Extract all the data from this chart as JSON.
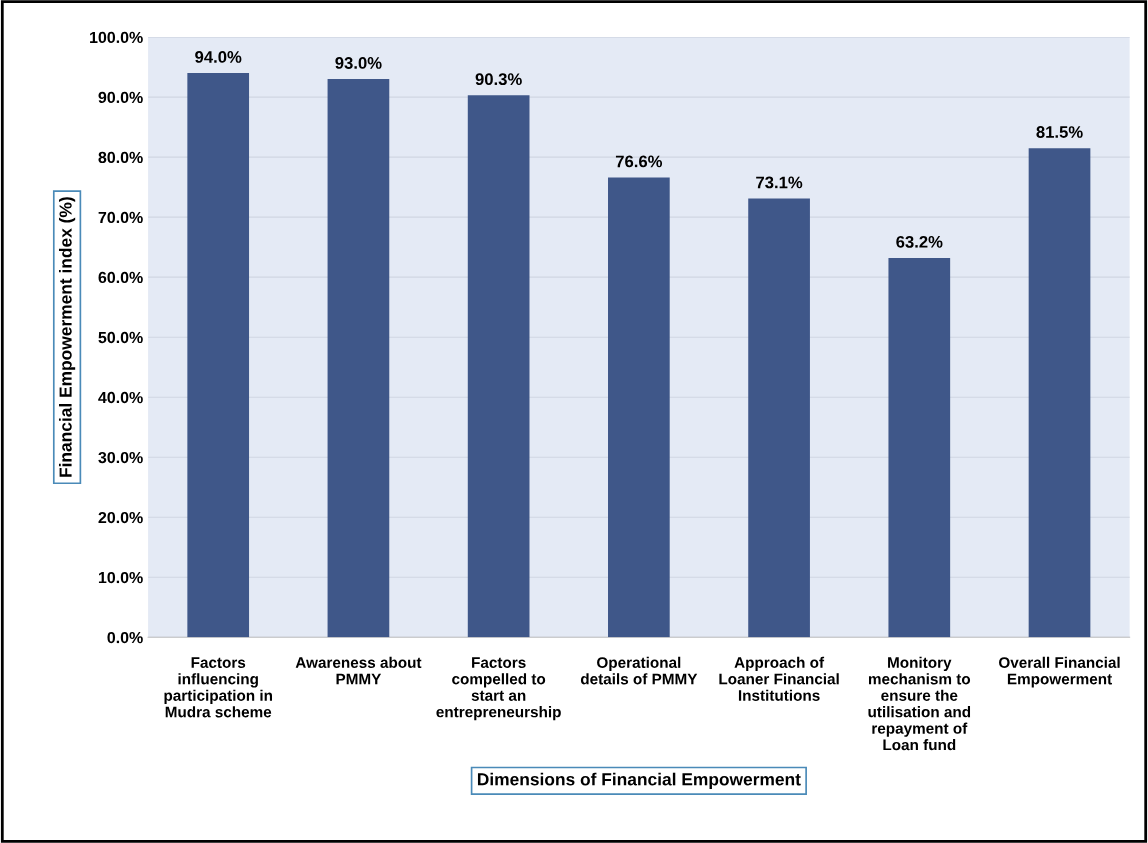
{
  "chart_data": {
    "type": "bar",
    "categories": [
      "Factors\ninfluencing\nparticipation in\nMudra scheme",
      "Awareness about\nPMMY",
      "Factors\ncompelled to\nstart an\nentrepreneurship",
      "Operational\ndetails of PMMY",
      "Approach of\nLoaner Financial\nInstitutions",
      "Monitory\nmechanism to\nensure the\nutilisation and\nrepayment of\nLoan fund",
      "Overall Financial\nEmpowerment"
    ],
    "values": [
      94.0,
      93.0,
      90.3,
      76.6,
      73.1,
      63.2,
      81.5
    ],
    "value_labels": [
      "94.0%",
      "93.0%",
      "90.3%",
      "76.6%",
      "73.1%",
      "63.2%",
      "81.5%"
    ],
    "color": "#3f5789",
    "xlabel": "Dimensions of Financial Empowerment",
    "ylabel": "Financial Empowerment index (%)",
    "ylim": [
      0,
      100
    ],
    "yticks": [
      {
        "value": 0,
        "label": "0.0%"
      },
      {
        "value": 10,
        "label": "10.0%"
      },
      {
        "value": 20,
        "label": "20.0%"
      },
      {
        "value": 30,
        "label": "30.0%"
      },
      {
        "value": 40,
        "label": "40.0%"
      },
      {
        "value": 50,
        "label": "50.0%"
      },
      {
        "value": 60,
        "label": "60.0%"
      },
      {
        "value": 70,
        "label": "70.0%"
      },
      {
        "value": 80,
        "label": "80.0%"
      },
      {
        "value": 90,
        "label": "90.0%"
      },
      {
        "value": 100,
        "label": "100.0%"
      }
    ],
    "grid": "y",
    "legend": false
  }
}
